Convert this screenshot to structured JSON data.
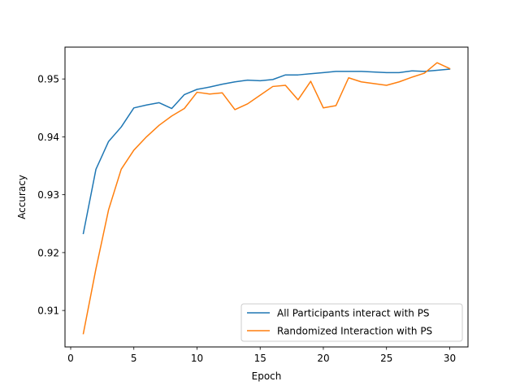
{
  "chart_data": {
    "type": "line",
    "title": "",
    "xlabel": "Epoch",
    "ylabel": "Accuracy",
    "xlim": [
      -0.45,
      31.45
    ],
    "ylim": [
      0.9037,
      0.9555
    ],
    "xticks": [
      0,
      5,
      10,
      15,
      20,
      25,
      30
    ],
    "yticks": [
      0.91,
      0.92,
      0.93,
      0.94,
      0.95
    ],
    "grid": false,
    "legend_position": "lower-right",
    "x": [
      1,
      2,
      3,
      4,
      5,
      6,
      7,
      8,
      9,
      10,
      11,
      12,
      13,
      14,
      15,
      16,
      17,
      18,
      19,
      20,
      21,
      22,
      23,
      24,
      25,
      26,
      27,
      28,
      29,
      30
    ],
    "series": [
      {
        "name": "All Participants interact with PS",
        "color": "#1f77b4",
        "values": [
          0.9233,
          0.9344,
          0.9392,
          0.9417,
          0.945,
          0.9455,
          0.9459,
          0.9449,
          0.9473,
          0.9482,
          0.9486,
          0.9491,
          0.9495,
          0.9498,
          0.9497,
          0.9499,
          0.9507,
          0.9507,
          0.9509,
          0.9511,
          0.9513,
          0.9513,
          0.9513,
          0.9512,
          0.9511,
          0.9511,
          0.9514,
          0.9513,
          0.9515,
          0.9517
        ]
      },
      {
        "name": "Randomized Interaction with PS",
        "color": "#ff7f0e",
        "values": [
          0.906,
          0.9172,
          0.9274,
          0.9344,
          0.9377,
          0.94,
          0.942,
          0.9436,
          0.9449,
          0.9477,
          0.9474,
          0.9476,
          0.9447,
          0.9457,
          0.9472,
          0.9487,
          0.9489,
          0.9464,
          0.9496,
          0.945,
          0.9454,
          0.9502,
          0.9495,
          0.9492,
          0.9489,
          0.9495,
          0.9503,
          0.951,
          0.9528,
          0.9518
        ]
      }
    ]
  }
}
